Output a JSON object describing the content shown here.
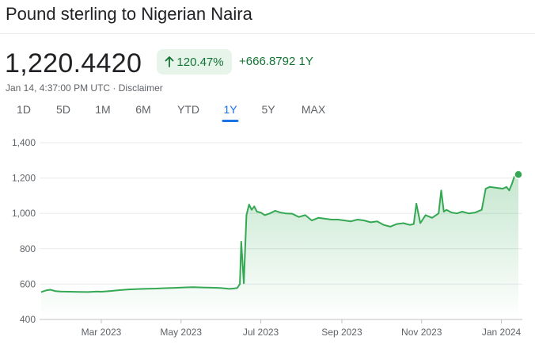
{
  "header": {
    "title": "Pound sterling to Nigerian Naira"
  },
  "quote": {
    "price": "1,220.4420",
    "percent_change": "120.47%",
    "absolute_change": "+666.8792 1Y",
    "timestamp": "Jan 14, 4:37:00 PM UTC",
    "separator": " · ",
    "disclaimer": "Disclaimer"
  },
  "colors": {
    "positive": "#137333",
    "chip_bg": "#e6f4ea",
    "line": "#34a853",
    "active_tab": "#1a73e8"
  },
  "tabs": [
    {
      "label": "1D"
    },
    {
      "label": "5D"
    },
    {
      "label": "1M"
    },
    {
      "label": "6M"
    },
    {
      "label": "YTD"
    },
    {
      "label": "1Y",
      "active": true
    },
    {
      "label": "5Y"
    },
    {
      "label": "MAX"
    }
  ],
  "chart_data": {
    "type": "area",
    "ylim": [
      400,
      1400
    ],
    "y_ticks": [
      "1,400",
      "1,200",
      "1,000",
      "800",
      "600",
      "400"
    ],
    "x_ticks": [
      "Mar 2023",
      "May 2023",
      "Jul 2023",
      "Sep 2023",
      "Nov 2023",
      "Jan 2024"
    ],
    "grid": true,
    "x": [
      "2023-01-14",
      "2023-01-18",
      "2023-01-21",
      "2023-01-25",
      "2023-01-29",
      "2023-02-05",
      "2023-02-12",
      "2023-02-19",
      "2023-02-26",
      "2023-03-01",
      "2023-03-08",
      "2023-03-15",
      "2023-03-22",
      "2023-03-29",
      "2023-04-05",
      "2023-04-12",
      "2023-04-19",
      "2023-04-26",
      "2023-05-03",
      "2023-05-10",
      "2023-05-17",
      "2023-05-24",
      "2023-05-31",
      "2023-06-07",
      "2023-06-10",
      "2023-06-13",
      "2023-06-14",
      "2023-06-15",
      "2023-06-16",
      "2023-06-18",
      "2023-06-20",
      "2023-06-22",
      "2023-06-24",
      "2023-06-26",
      "2023-06-28",
      "2023-07-01",
      "2023-07-04",
      "2023-07-08",
      "2023-07-12",
      "2023-07-16",
      "2023-07-20",
      "2023-07-25",
      "2023-07-30",
      "2023-08-04",
      "2023-08-09",
      "2023-08-14",
      "2023-08-19",
      "2023-08-24",
      "2023-08-29",
      "2023-09-03",
      "2023-09-08",
      "2023-09-13",
      "2023-09-18",
      "2023-09-23",
      "2023-09-28",
      "2023-10-03",
      "2023-10-08",
      "2023-10-13",
      "2023-10-18",
      "2023-10-23",
      "2023-10-26",
      "2023-10-28",
      "2023-10-31",
      "2023-11-04",
      "2023-11-09",
      "2023-11-14",
      "2023-11-16",
      "2023-11-18",
      "2023-11-20",
      "2023-11-24",
      "2023-11-28",
      "2023-12-02",
      "2023-12-07",
      "2023-12-12",
      "2023-12-17",
      "2023-12-20",
      "2023-12-23",
      "2023-12-28",
      "2024-01-02",
      "2024-01-05",
      "2024-01-07",
      "2024-01-09",
      "2024-01-11",
      "2024-01-14"
    ],
    "y": [
      555,
      565,
      568,
      560,
      558,
      557,
      556,
      555,
      558,
      557,
      561,
      566,
      570,
      572,
      574,
      575,
      577,
      579,
      581,
      583,
      581,
      580,
      578,
      573,
      575,
      578,
      590,
      600,
      840,
      605,
      990,
      1050,
      1020,
      1040,
      1010,
      1005,
      990,
      1000,
      1015,
      1005,
      1000,
      998,
      980,
      990,
      960,
      975,
      970,
      965,
      965,
      960,
      955,
      965,
      960,
      950,
      955,
      935,
      925,
      940,
      945,
      935,
      940,
      1055,
      945,
      990,
      975,
      1000,
      1130,
      1010,
      1020,
      1005,
      1000,
      1010,
      1000,
      1005,
      1020,
      1140,
      1150,
      1145,
      1140,
      1150,
      1130,
      1165,
      1210,
      1220
    ]
  }
}
